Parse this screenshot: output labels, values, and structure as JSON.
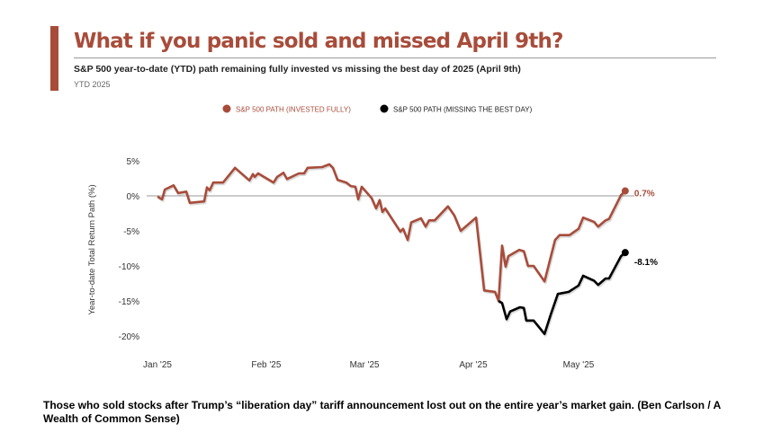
{
  "header": {
    "title": "What if you panic sold and missed April 9th?",
    "subtitle": "S&P 500 year-to-date (YTD) path remaining fully invested vs missing the best day of 2025 (April 9th)",
    "period": "YTD 2025"
  },
  "caption": "Those who sold stocks after Trump’s “liberation day” tariff announcement lost out on the entire year’s market gain.  (Ben Carlson / A Wealth of Common Sense)",
  "chart_data": {
    "type": "line",
    "title": "What if you panic sold and missed April 9th?",
    "xlabel": "",
    "ylabel": "Year-to-date Total Return Path (%)",
    "x_unit": "days since Jan 1 2025",
    "ylim": [
      -20,
      5
    ],
    "yticks": [
      {
        "v": 5,
        "label": "5%"
      },
      {
        "v": 0,
        "label": "0%"
      },
      {
        "v": -5,
        "label": "-5%"
      },
      {
        "v": -10,
        "label": "-10%"
      },
      {
        "v": -15,
        "label": "-15%"
      },
      {
        "v": -20,
        "label": "-20%"
      }
    ],
    "xticks": [
      {
        "v": 0,
        "label": "Jan '25"
      },
      {
        "v": 31,
        "label": "Feb '25"
      },
      {
        "v": 59,
        "label": "Mar '25"
      },
      {
        "v": 90,
        "label": "Apr '25"
      },
      {
        "v": 120,
        "label": "May '25"
      }
    ],
    "grid": false,
    "legend_position": "top",
    "series": [
      {
        "name": "S&P 500 PATH (INVESTED FULLY)",
        "color": "#a84c3a",
        "end_label": "0.7%",
        "points": [
          [
            0,
            -0.1
          ],
          [
            1.3,
            -0.5
          ],
          [
            2.1,
            0.9
          ],
          [
            4.6,
            1.5
          ],
          [
            5.9,
            0.4
          ],
          [
            8.2,
            0.6
          ],
          [
            9.2,
            -1.0
          ],
          [
            13.3,
            -0.8
          ],
          [
            14.1,
            1.2
          ],
          [
            14.9,
            0.8
          ],
          [
            15.9,
            1.9
          ],
          [
            18.7,
            1.9
          ],
          [
            22.1,
            4.0
          ],
          [
            26.2,
            2.2
          ],
          [
            27.2,
            3.1
          ],
          [
            27.7,
            2.7
          ],
          [
            28.7,
            3.2
          ],
          [
            33.1,
            1.9
          ],
          [
            34.1,
            2.7
          ],
          [
            35.9,
            3.3
          ],
          [
            36.9,
            2.4
          ],
          [
            40.3,
            3.2
          ],
          [
            41.8,
            3.2
          ],
          [
            42.8,
            4.0
          ],
          [
            46.9,
            4.1
          ],
          [
            49.0,
            4.5
          ],
          [
            50.0,
            4.0
          ],
          [
            51.3,
            2.3
          ],
          [
            53.8,
            1.9
          ],
          [
            55.1,
            1.4
          ],
          [
            56.4,
            1.3
          ],
          [
            57.2,
            -0.5
          ],
          [
            58.2,
            1.3
          ],
          [
            61.0,
            -0.3
          ],
          [
            62.3,
            -1.8
          ],
          [
            63.3,
            -0.6
          ],
          [
            64.1,
            -2.3
          ],
          [
            64.9,
            -1.8
          ],
          [
            69.2,
            -5.1
          ],
          [
            70.0,
            -4.7
          ],
          [
            71.3,
            -6.3
          ],
          [
            72.3,
            -3.8
          ],
          [
            75.1,
            -3.2
          ],
          [
            76.4,
            -4.4
          ],
          [
            77.4,
            -3.5
          ],
          [
            79.0,
            -3.5
          ],
          [
            82.8,
            -1.5
          ],
          [
            84.6,
            -2.8
          ],
          [
            86.4,
            -5.0
          ],
          [
            90.8,
            -3.1
          ],
          [
            93.1,
            -13.5
          ],
          [
            96.2,
            -13.7
          ],
          [
            97.2,
            -15.0
          ],
          [
            98.2,
            -7.1
          ],
          [
            99.2,
            -10.1
          ],
          [
            100.0,
            -8.6
          ],
          [
            103.1,
            -7.7
          ],
          [
            104.4,
            -7.9
          ],
          [
            105.6,
            -10.0
          ],
          [
            107.2,
            -10.0
          ],
          [
            110.3,
            -12.2
          ],
          [
            113.3,
            -6.3
          ],
          [
            114.6,
            -5.6
          ],
          [
            117.4,
            -5.6
          ],
          [
            120.0,
            -4.7
          ],
          [
            121.3,
            -3.1
          ],
          [
            124.4,
            -3.7
          ],
          [
            125.6,
            -4.4
          ],
          [
            127.7,
            -3.5
          ],
          [
            128.7,
            -3.3
          ],
          [
            132.1,
            0.1
          ],
          [
            133.3,
            0.7
          ]
        ]
      },
      {
        "name": "S&P 500 PATH (MISSING THE BEST DAY)",
        "color": "#000000",
        "end_label": "-8.1%",
        "points": [
          [
            97.2,
            -15.0
          ],
          [
            98.2,
            -15.3
          ],
          [
            99.5,
            -17.6
          ],
          [
            100.5,
            -16.5
          ],
          [
            103.3,
            -15.9
          ],
          [
            104.4,
            -16.0
          ],
          [
            105.1,
            -17.8
          ],
          [
            107.2,
            -17.8
          ],
          [
            110.3,
            -19.7
          ],
          [
            112.1,
            -16.9
          ],
          [
            114.1,
            -14.0
          ],
          [
            117.2,
            -13.7
          ],
          [
            120.0,
            -12.8
          ],
          [
            121.3,
            -11.4
          ],
          [
            124.4,
            -12.1
          ],
          [
            125.6,
            -12.7
          ],
          [
            127.7,
            -11.8
          ],
          [
            128.7,
            -11.8
          ],
          [
            132.1,
            -8.6
          ],
          [
            133.3,
            -8.1
          ]
        ]
      }
    ]
  }
}
